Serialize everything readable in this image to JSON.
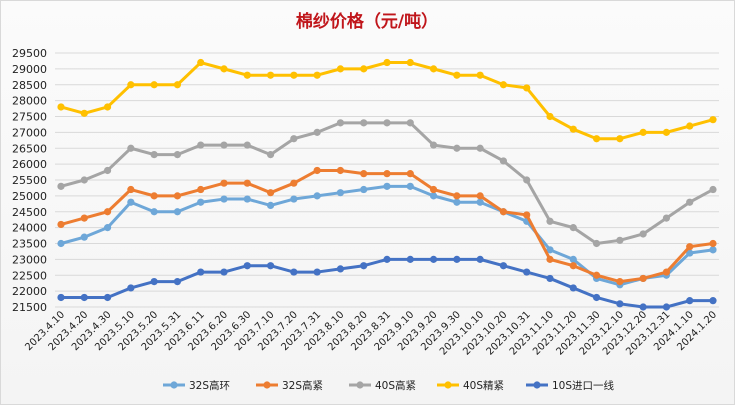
{
  "chart_data": {
    "type": "line",
    "title": "棉纱价格（元/吨）",
    "xlabel": "",
    "ylabel": "",
    "ylim": [
      21500,
      29500
    ],
    "ystep": 500,
    "grid": true,
    "legend_position": "bottom",
    "x": [
      "2023.4.10",
      "2023.4.20",
      "2023.4.30",
      "2023.5.10",
      "2023.5.20",
      "2023.5.31",
      "2023.6.11",
      "2023.6.20",
      "2023.6.30",
      "2023.7.10",
      "2023.7.20",
      "2023.7.31",
      "2023.8.10",
      "2023.8.20",
      "2023.8.31",
      "2023.9.10",
      "2023.9.20",
      "2023.9.30",
      "2023.10.10",
      "2023.10.20",
      "2023.10.31",
      "2023.11.10",
      "2023.11.20",
      "2023.11.30",
      "2023.12.10",
      "2023.12.20",
      "2023.12.31",
      "2024.1.10",
      "2024.1.20"
    ],
    "series": [
      {
        "name": "32S高环",
        "color": "#6ea7d8",
        "values": [
          23500,
          23700,
          24000,
          24800,
          24500,
          24500,
          24800,
          24900,
          24900,
          24700,
          24900,
          25000,
          25100,
          25200,
          25300,
          25300,
          25000,
          24800,
          24800,
          24500,
          24200,
          23300,
          23000,
          22400,
          22200,
          22400,
          22500,
          23200,
          23300
        ]
      },
      {
        "name": "32S高紧",
        "color": "#ed7d31",
        "values": [
          24100,
          24300,
          24500,
          25200,
          25000,
          25000,
          25200,
          25400,
          25400,
          25100,
          25400,
          25800,
          25800,
          25700,
          25700,
          25700,
          25200,
          25000,
          25000,
          24500,
          24400,
          23000,
          22800,
          22500,
          22300,
          22400,
          22600,
          23400,
          23500
        ]
      },
      {
        "name": "40S高紧",
        "color": "#a5a5a5",
        "values": [
          25300,
          25500,
          25800,
          26500,
          26300,
          26300,
          26600,
          26600,
          26600,
          26300,
          26800,
          27000,
          27300,
          27300,
          27300,
          27300,
          26600,
          26500,
          26500,
          26100,
          25500,
          24200,
          24000,
          23500,
          23600,
          23800,
          24300,
          24800,
          25200
        ]
      },
      {
        "name": "40S精紧",
        "color": "#ffc000",
        "values": [
          27800,
          27600,
          27800,
          28500,
          28500,
          28500,
          29200,
          29000,
          28800,
          28800,
          28800,
          28800,
          29000,
          29000,
          29200,
          29200,
          29000,
          28800,
          28800,
          28500,
          28400,
          27500,
          27100,
          26800,
          26800,
          27000,
          27000,
          27200,
          27400
        ]
      },
      {
        "name": "10S进口一线",
        "color": "#4472c4",
        "values": [
          21800,
          21800,
          21800,
          22100,
          22300,
          22300,
          22600,
          22600,
          22800,
          22800,
          22600,
          22600,
          22700,
          22800,
          23000,
          23000,
          23000,
          23000,
          23000,
          22800,
          22600,
          22400,
          22100,
          21800,
          21600,
          21500,
          21500,
          21700,
          21700
        ]
      }
    ]
  }
}
